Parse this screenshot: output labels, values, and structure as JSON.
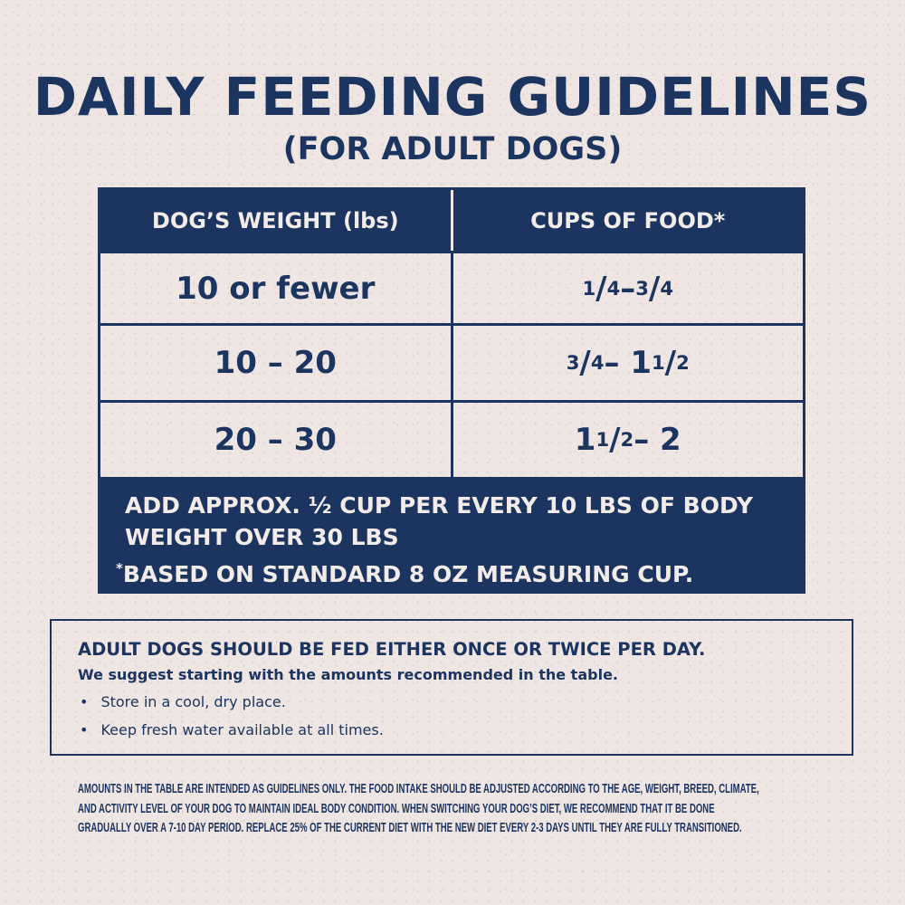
{
  "title": "DAILY FEEDING GUIDELINES",
  "subtitle": "(FOR ADULT DOGS)",
  "colors": {
    "navy": "#1b3560",
    "background": "#efe6e3"
  },
  "table": {
    "headers": [
      "DOG’S WEIGHT (lbs)",
      "CUPS OF FOOD*"
    ],
    "rows": [
      {
        "weight": "10 or fewer",
        "cups": "1/4 – 3/4"
      },
      {
        "weight": "10 – 20",
        "cups": "3/4 – 1 1/2"
      },
      {
        "weight": "20 – 30",
        "cups": "1 1/2 – 2"
      }
    ],
    "note_line1": "ADD APPROX. ½ CUP PER EVERY 10 LBS OF BODY",
    "note_line2": "WEIGHT OVER 30 LBS",
    "note_star": "*",
    "note_line3": "BASED ON STANDARD 8 OZ MEASURING CUP."
  },
  "info": {
    "heading": "ADULT DOGS SHOULD BE FED EITHER ONCE OR TWICE PER DAY.",
    "suggestion": "We suggest starting with the amounts recommended in the table.",
    "bullets": [
      "Store in a cool, dry place.",
      "Keep fresh water available at all times."
    ]
  },
  "footnote": [
    "AMOUNTS IN THE TABLE ARE INTENDED AS GUIDELINES ONLY. THE FOOD INTAKE SHOULD BE ADJUSTED ACCORDING TO THE AGE, WEIGHT, BREED, CLIMATE,",
    "AND ACTIVITY LEVEL OF YOUR DOG TO MAINTAIN IDEAL BODY CONDITION. WHEN SWITCHING YOUR DOG’S DIET, WE RECOMMEND THAT IT BE DONE",
    "GRADUALLY OVER A 7-10 DAY PERIOD. REPLACE 25% OF THE CURRENT DIET WITH THE NEW DIET EVERY 2-3 DAYS UNTIL THEY ARE FULLY TRANSITIONED."
  ]
}
